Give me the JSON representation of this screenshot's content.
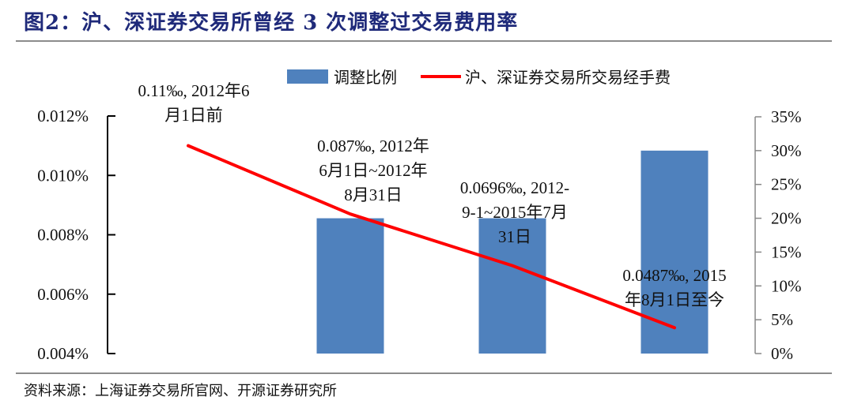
{
  "header": {
    "title": "图2：沪、深证券交易所曾经 3 次调整过交易费用率"
  },
  "footer": {
    "source": "资料来源：上海证券交易所官网、开源证券研究所"
  },
  "colors": {
    "bar": "#4f81bd",
    "line": "#ff0000",
    "title": "#1f2a7a",
    "rule": "#8c8c8c"
  },
  "chart_data": {
    "type": "bar+line",
    "title": "沪、深证券交易所曾经 3 次调整过交易费用率",
    "categories": [
      "2012年6月1日前",
      "2012年6月1日~2012年8月31日",
      "2012-9-1~2015年7月31日",
      "2015年8月1日至今"
    ],
    "legend": {
      "position": "top",
      "entries": [
        "调整比例",
        "沪、深证券交易所交易经手费"
      ]
    },
    "series": [
      {
        "name": "调整比例",
        "type": "bar",
        "axis": "right",
        "values": [
          null,
          20,
          20,
          30
        ],
        "unit": "%"
      },
      {
        "name": "沪、深证券交易所交易经手费",
        "type": "line",
        "axis": "left",
        "values": [
          0.011,
          0.0087,
          0.00696,
          0.00487
        ],
        "unit": "%"
      }
    ],
    "left_axis": {
      "ticks": [
        "0.004%",
        "0.006%",
        "0.008%",
        "0.010%",
        "0.012%"
      ],
      "ylim": [
        0.004,
        0.012
      ]
    },
    "right_axis": {
      "ticks": [
        "0%",
        "5%",
        "10%",
        "15%",
        "20%",
        "25%",
        "30%",
        "35%"
      ],
      "ylim": [
        0,
        35
      ]
    },
    "annotations": [
      {
        "lines": [
          "0.11‰, 2012年6",
          "月1日前"
        ]
      },
      {
        "lines": [
          "0.087‰, 2012年",
          "6月1日~2012年",
          "8月31日"
        ]
      },
      {
        "lines": [
          "0.0696‰, 2012-",
          "9-1~2015年7月",
          "31日"
        ]
      },
      {
        "lines": [
          "0.0487‰, 2015",
          "年8月1日至今"
        ]
      }
    ],
    "grid": false
  }
}
